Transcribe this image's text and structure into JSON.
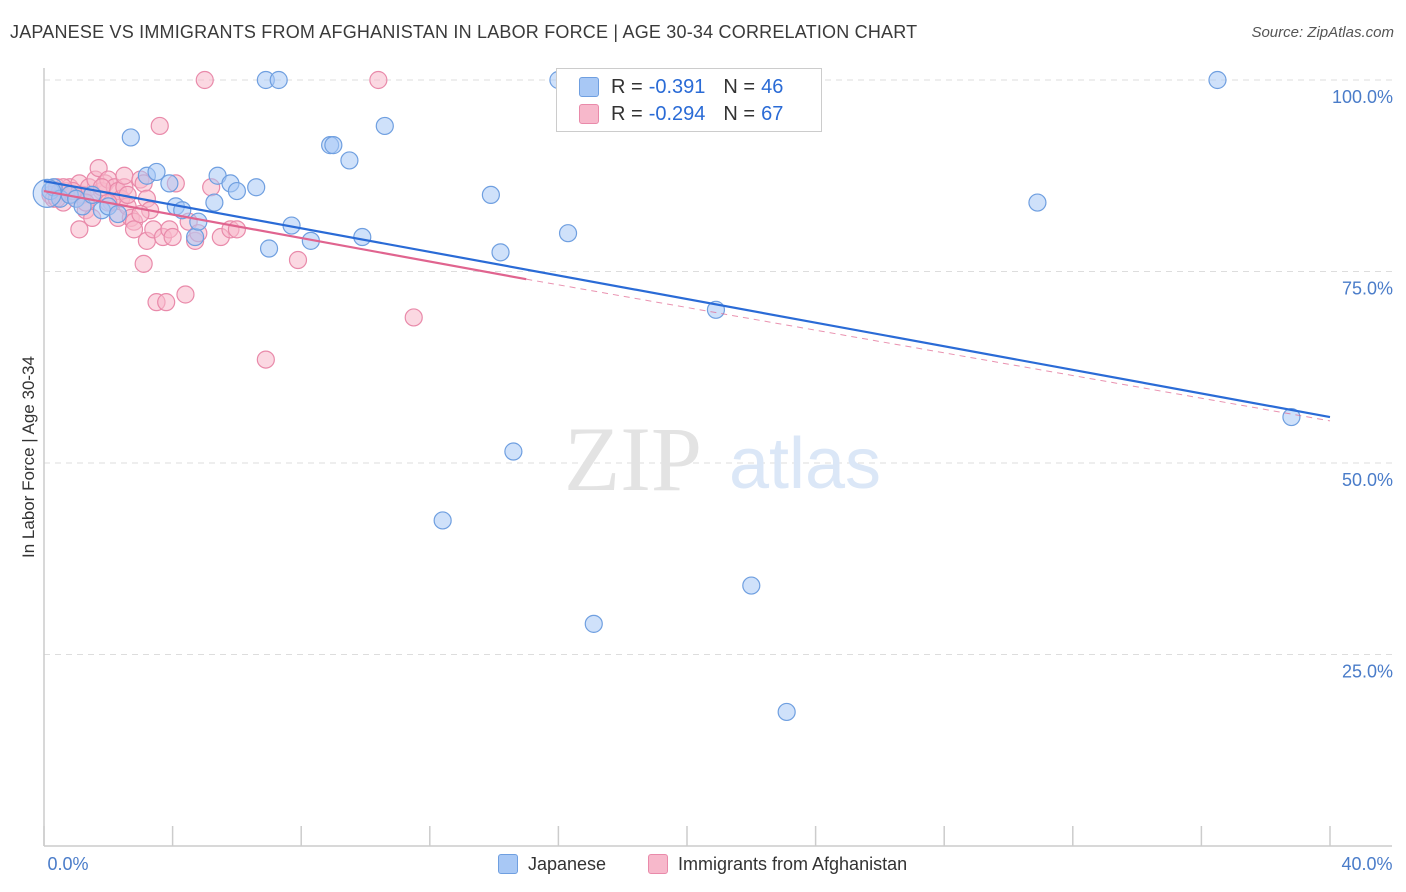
{
  "title": "JAPANESE VS IMMIGRANTS FROM AFGHANISTAN IN LABOR FORCE | AGE 30-34 CORRELATION CHART",
  "source": "Source: ZipAtlas.com",
  "watermark": {
    "zip": "ZIP",
    "atlas": "atlas"
  },
  "colors": {
    "japanese_fill": "#a8c8f5",
    "japanese_stroke": "#6f9fe0",
    "japanese_line": "#2a6bd6",
    "afghan_fill": "#f7b8cb",
    "afghan_stroke": "#e98aaa",
    "afghan_line": "#e0648f",
    "tick_label": "#4a7cc9",
    "grid": "#dddddd"
  },
  "stats": [
    {
      "r_label": "R =",
      "r_value": "-0.391",
      "n_label": "N =",
      "n_value": "46"
    },
    {
      "r_label": "R =",
      "r_value": "-0.294",
      "n_label": "N =",
      "n_value": "67"
    }
  ],
  "chart_data": {
    "type": "scatter",
    "title": "JAPANESE VS IMMIGRANTS FROM AFGHANISTAN IN LABOR FORCE | AGE 30-34 CORRELATION CHART",
    "xlabel": "",
    "ylabel": "In Labor Force | Age 30-34",
    "xlim": [
      0,
      40
    ],
    "ylim": [
      0,
      105
    ],
    "x_tick_labels": [
      {
        "value": 0,
        "label": "0.0%"
      },
      {
        "value": 40,
        "label": "40.0%"
      }
    ],
    "y_tick_labels": [
      {
        "value": 100,
        "label": "100.0%"
      },
      {
        "value": 75,
        "label": "75.0%"
      },
      {
        "value": 50,
        "label": "50.0%"
      },
      {
        "value": 25,
        "label": "25.0%"
      }
    ],
    "legend": [
      "Japanese",
      "Immigrants from Afghanistan"
    ],
    "legend_position": "bottom",
    "series": [
      {
        "name": "Japanese",
        "r": -0.391,
        "n": 46,
        "trend": {
          "x": [
            0,
            40
          ],
          "y": [
            86.8,
            56.0
          ]
        },
        "points": [
          [
            0.2,
            85.5
          ],
          [
            0.3,
            86.0
          ],
          [
            0.5,
            84.5
          ],
          [
            0.8,
            85.0
          ],
          [
            1.0,
            84.5
          ],
          [
            1.2,
            83.5
          ],
          [
            1.5,
            85.0
          ],
          [
            1.8,
            83.0
          ],
          [
            2.0,
            83.5
          ],
          [
            2.3,
            82.5
          ],
          [
            2.7,
            92.5
          ],
          [
            3.2,
            87.5
          ],
          [
            3.5,
            88.0
          ],
          [
            3.9,
            86.5
          ],
          [
            4.1,
            83.5
          ],
          [
            4.3,
            83.0
          ],
          [
            4.7,
            79.5
          ],
          [
            4.8,
            81.5
          ],
          [
            5.3,
            84.0
          ],
          [
            5.4,
            87.5
          ],
          [
            5.8,
            86.5
          ],
          [
            6.0,
            85.5
          ],
          [
            6.6,
            86.0
          ],
          [
            6.9,
            100.0
          ],
          [
            7.0,
            78.0
          ],
          [
            7.3,
            100.0
          ],
          [
            7.7,
            81.0
          ],
          [
            8.3,
            79.0
          ],
          [
            8.9,
            91.5
          ],
          [
            9.0,
            91.5
          ],
          [
            9.5,
            89.5
          ],
          [
            9.9,
            79.5
          ],
          [
            10.6,
            94.0
          ],
          [
            13.9,
            85.0
          ],
          [
            14.2,
            77.5
          ],
          [
            14.6,
            51.5
          ],
          [
            16.0,
            100.0
          ],
          [
            16.3,
            80.0
          ],
          [
            12.4,
            42.5
          ],
          [
            17.1,
            29.0
          ],
          [
            20.9,
            70.0
          ],
          [
            22.0,
            34.0
          ],
          [
            23.1,
            17.5
          ],
          [
            30.9,
            84.0
          ],
          [
            36.5,
            100.0
          ],
          [
            38.8,
            56.0
          ]
        ]
      },
      {
        "name": "Immigrants from Afghanistan",
        "r": -0.294,
        "n": 67,
        "trend": {
          "x": [
            0,
            15
          ],
          "y": [
            85.5,
            74.0
          ]
        },
        "trend_dashed": {
          "x": [
            15,
            40
          ],
          "y": [
            74.0,
            55.5
          ]
        },
        "points": [
          [
            0.2,
            85.0
          ],
          [
            0.3,
            84.5
          ],
          [
            0.4,
            86.0
          ],
          [
            0.5,
            85.5
          ],
          [
            0.6,
            84.0
          ],
          [
            0.7,
            85.5
          ],
          [
            0.8,
            86.0
          ],
          [
            0.9,
            85.0
          ],
          [
            1.0,
            84.5
          ],
          [
            1.1,
            86.5
          ],
          [
            1.2,
            85.0
          ],
          [
            1.1,
            80.5
          ],
          [
            1.3,
            83.0
          ],
          [
            1.4,
            86.0
          ],
          [
            1.5,
            82.0
          ],
          [
            1.6,
            87.0
          ],
          [
            1.7,
            88.5
          ],
          [
            1.8,
            85.5
          ],
          [
            1.9,
            86.5
          ],
          [
            2.0,
            87.0
          ],
          [
            2.1,
            84.0
          ],
          [
            2.2,
            86.0
          ],
          [
            2.3,
            85.5
          ],
          [
            2.4,
            84.5
          ],
          [
            2.5,
            86.0
          ],
          [
            2.3,
            82.0
          ],
          [
            2.5,
            87.5
          ],
          [
            2.6,
            83.5
          ],
          [
            2.7,
            82.0
          ],
          [
            2.8,
            81.5
          ],
          [
            2.8,
            80.5
          ],
          [
            3.0,
            87.0
          ],
          [
            3.1,
            86.5
          ],
          [
            3.2,
            84.5
          ],
          [
            3.1,
            76.0
          ],
          [
            3.3,
            83.0
          ],
          [
            3.2,
            79.0
          ],
          [
            3.4,
            80.5
          ],
          [
            3.5,
            71.0
          ],
          [
            3.6,
            94.0
          ],
          [
            3.7,
            79.5
          ],
          [
            3.8,
            71.0
          ],
          [
            3.9,
            80.5
          ],
          [
            4.0,
            79.5
          ],
          [
            4.1,
            86.5
          ],
          [
            4.4,
            72.0
          ],
          [
            4.5,
            81.5
          ],
          [
            4.7,
            79.0
          ],
          [
            4.8,
            80.0
          ],
          [
            5.0,
            100.0
          ],
          [
            5.2,
            86.0
          ],
          [
            5.5,
            79.5
          ],
          [
            5.8,
            80.5
          ],
          [
            6.0,
            80.5
          ],
          [
            6.9,
            63.5
          ],
          [
            7.9,
            76.5
          ],
          [
            10.4,
            100.0
          ],
          [
            11.5,
            69.0
          ],
          [
            0.9,
            85.5
          ],
          [
            1.5,
            85.0
          ],
          [
            2.0,
            84.0
          ],
          [
            0.6,
            86.0
          ],
          [
            1.3,
            84.0
          ],
          [
            2.6,
            85.0
          ],
          [
            0.4,
            84.5
          ],
          [
            3.0,
            82.5
          ],
          [
            1.8,
            86.0
          ]
        ]
      }
    ]
  }
}
